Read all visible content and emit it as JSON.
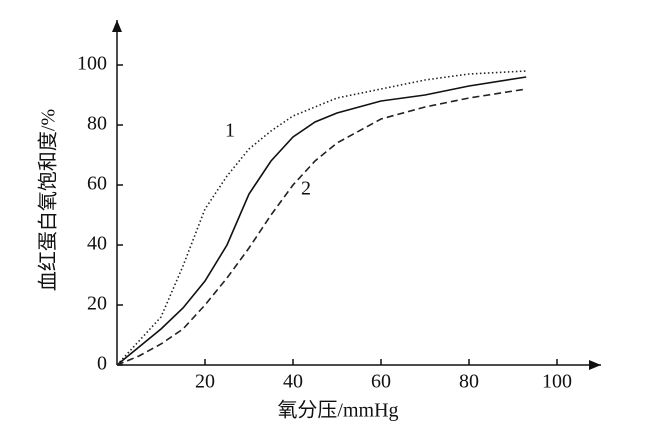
{
  "chart_data": {
    "type": "line",
    "x_label": "氧分压/mmHg",
    "y_label": "血红蛋白氧饱和度/%",
    "x": [
      0,
      5,
      10,
      15,
      20,
      25,
      30,
      35,
      40,
      45,
      50,
      60,
      70,
      80,
      93
    ],
    "series": [
      {
        "name": "1",
        "color": "#222",
        "style": "dotted",
        "values": [
          0,
          8,
          16,
          33,
          52,
          63,
          72,
          78,
          83,
          86,
          89,
          92,
          95,
          97,
          98
        ]
      },
      {
        "color": "#111",
        "style": "solid",
        "values": [
          0,
          6,
          12,
          19,
          28,
          40,
          57,
          68,
          76,
          81,
          84,
          88,
          90,
          93,
          96
        ]
      },
      {
        "name": "2",
        "color": "#222",
        "style": "dashed",
        "values": [
          0,
          3,
          7,
          12,
          20,
          29,
          39,
          50,
          60,
          68,
          74,
          82,
          86,
          89,
          92
        ]
      }
    ],
    "xlim": [
      0,
      110
    ],
    "ylim": [
      0,
      115
    ],
    "xticks": [
      20,
      40,
      60,
      80,
      100
    ],
    "yticks": [
      0,
      20,
      40,
      60,
      80,
      100
    ]
  }
}
